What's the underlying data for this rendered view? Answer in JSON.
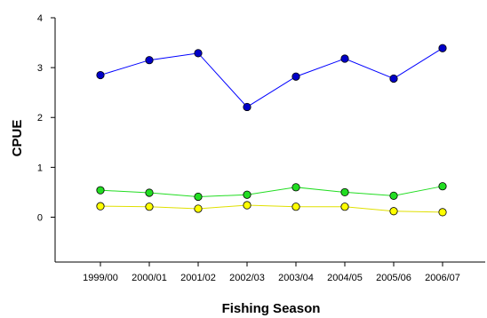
{
  "chart_data": {
    "type": "line",
    "title": "",
    "xlabel": "Fishing Season",
    "ylabel": "CPUE",
    "categories": [
      "1999/00",
      "2000/01",
      "2001/02",
      "2002/03",
      "2003/04",
      "2004/05",
      "2005/06",
      "2006/07"
    ],
    "ylim": [
      -0.9,
      4
    ],
    "yticks": [
      0,
      1,
      2,
      3,
      4
    ],
    "grid": false,
    "legend": "none",
    "series": [
      {
        "color": "#0000ff",
        "marker_color": "#0000c8",
        "values": [
          2.85,
          3.15,
          3.29,
          2.21,
          2.82,
          3.18,
          2.78,
          3.39
        ]
      },
      {
        "color": "#22dd22",
        "marker_color": "#22dd22",
        "values": [
          0.54,
          0.49,
          0.41,
          0.45,
          0.6,
          0.5,
          0.43,
          0.62
        ]
      },
      {
        "color": "#e0e000",
        "marker_color": "#ffff00",
        "values": [
          0.22,
          0.21,
          0.17,
          0.24,
          0.21,
          0.21,
          0.12,
          0.1
        ]
      }
    ]
  }
}
